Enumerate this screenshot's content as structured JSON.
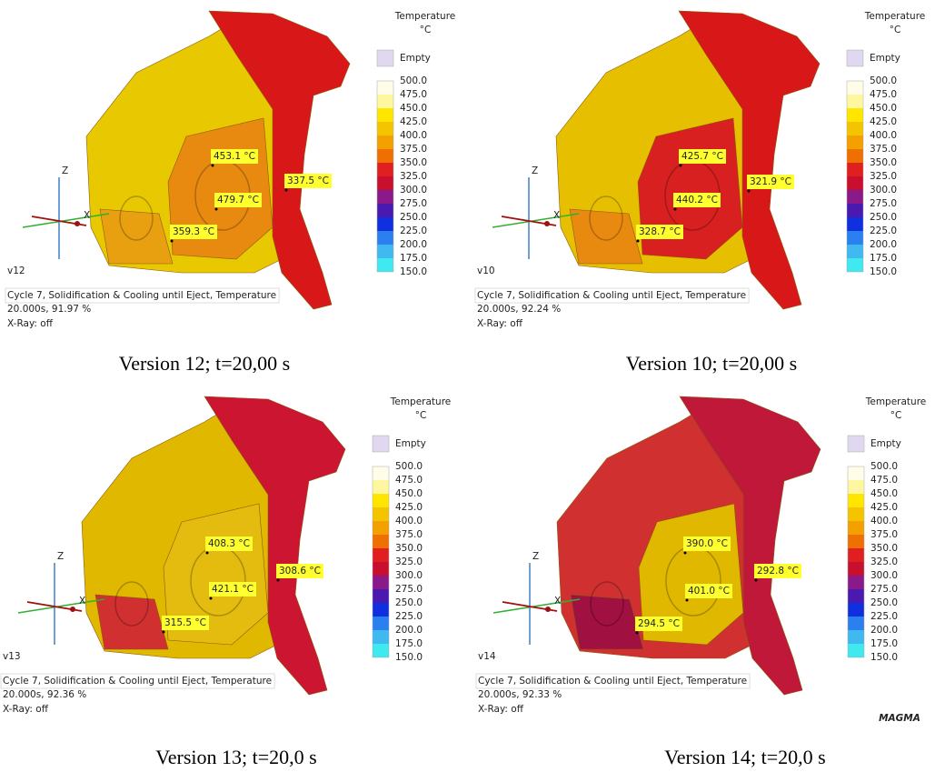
{
  "panels": [
    {
      "legend": {
        "title": "Temperature",
        "unit": "°C",
        "empty": "Empty",
        "labels": [
          "500.0",
          "475.0",
          "450.0",
          "425.0",
          "400.0",
          "375.0",
          "350.0",
          "325.0",
          "300.0",
          "275.0",
          "250.0",
          "225.0",
          "200.0",
          "175.0",
          "150.0"
        ]
      },
      "axis": {
        "z": "Z",
        "x": "X"
      },
      "version": "v12",
      "info": [
        "Cycle 7, Solidification & Cooling until Eject, Temperature",
        "20.000s, 91.97 %",
        "X-Ray: off"
      ],
      "annotations": [
        "453.1 °C",
        "479.7 °C",
        "359.3 °C",
        "337.5 °C"
      ],
      "caption": "Version 12; t=20,00 s"
    },
    {
      "legend": {
        "title": "Temperature",
        "unit": "°C",
        "empty": "Empty",
        "labels": [
          "500.0",
          "475.0",
          "450.0",
          "425.0",
          "400.0",
          "375.0",
          "350.0",
          "325.0",
          "300.0",
          "275.0",
          "250.0",
          "225.0",
          "200.0",
          "175.0",
          "150.0"
        ]
      },
      "axis": {
        "z": "Z",
        "x": "X"
      },
      "version": "v10",
      "info": [
        "Cycle 7, Solidification & Cooling until Eject, Temperature",
        "20.000s, 92.24 %",
        "X-Ray: off"
      ],
      "annotations": [
        "425.7 °C",
        "440.2 °C",
        "328.7 °C",
        "321.9 °C"
      ],
      "caption": "Version 10; t=20,00 s"
    },
    {
      "legend": {
        "title": "Temperature",
        "unit": "°C",
        "empty": "Empty",
        "labels": [
          "500.0",
          "475.0",
          "450.0",
          "425.0",
          "400.0",
          "375.0",
          "350.0",
          "325.0",
          "300.0",
          "275.0",
          "250.0",
          "225.0",
          "200.0",
          "175.0",
          "150.0"
        ]
      },
      "axis": {
        "z": "Z",
        "x": "X"
      },
      "version": "v13",
      "info": [
        "Cycle 7, Solidification & Cooling until Eject, Temperature",
        "20.000s, 92.36 %",
        "X-Ray: off"
      ],
      "annotations": [
        "408.3 °C",
        "421.1 °C",
        "315.5 °C",
        "308.6 °C"
      ],
      "caption": "Version 13; t=20,0 s"
    },
    {
      "legend": {
        "title": "Temperature",
        "unit": "°C",
        "empty": "Empty",
        "labels": [
          "500.0",
          "475.0",
          "450.0",
          "425.0",
          "400.0",
          "375.0",
          "350.0",
          "325.0",
          "300.0",
          "275.0",
          "250.0",
          "225.0",
          "200.0",
          "175.0",
          "150.0"
        ]
      },
      "axis": {
        "z": "Z",
        "x": "X"
      },
      "version": "v14",
      "info": [
        "Cycle 7, Solidification & Cooling until Eject, Temperature",
        "20.000s, 92.33 %",
        "X-Ray: off"
      ],
      "annotations": [
        "390.0 °C",
        "401.0 °C",
        "294.5 °C",
        "292.8 °C"
      ],
      "caption": "Version 14; t=20,0 s"
    }
  ],
  "logo": "MAGMA"
}
